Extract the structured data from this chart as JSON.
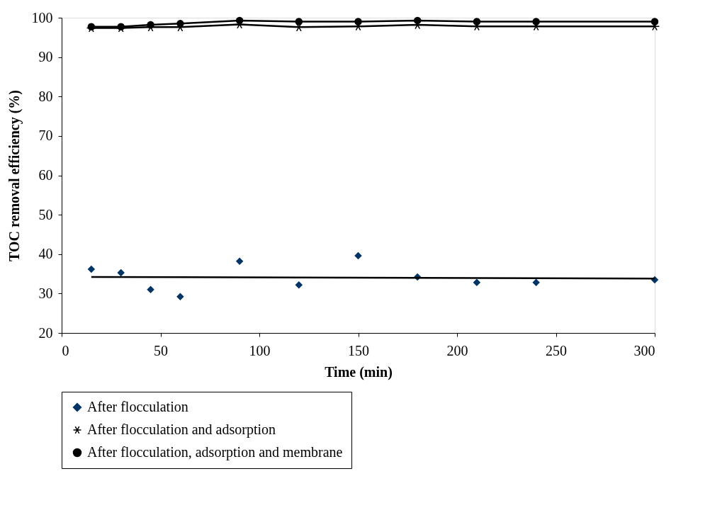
{
  "chart_data": {
    "type": "scatter",
    "xlabel": "Time (min)",
    "ylabel": "TOC removal efficiency (%)",
    "x": [
      15,
      30,
      45,
      60,
      90,
      120,
      150,
      180,
      210,
      240,
      300
    ],
    "xlim": [
      0,
      300
    ],
    "xticks": [
      0,
      50,
      100,
      150,
      200,
      250,
      300
    ],
    "ylim": [
      20,
      100
    ],
    "yticks": [
      20,
      30,
      40,
      50,
      60,
      70,
      80,
      90,
      100
    ],
    "grid": false,
    "legend": "bottom",
    "series": [
      {
        "name": "After flocculation",
        "marker": "diamond",
        "color": "#003366",
        "values": [
          36.2,
          35.3,
          31.0,
          29.2,
          38.2,
          32.2,
          39.6,
          34.2,
          32.8,
          32.8,
          33.5
        ]
      },
      {
        "name": "After flocculation and adsorption",
        "type": "line",
        "marker": "cross",
        "color": "#000000",
        "values": [
          97.4,
          97.4,
          97.6,
          97.6,
          98.3,
          97.6,
          97.8,
          98.2,
          97.8,
          97.8,
          97.8
        ]
      },
      {
        "name": "After flocculation, adsorption and membrane",
        "type": "line",
        "marker": "circle",
        "color": "#000000",
        "values": [
          97.7,
          97.7,
          98.2,
          98.5,
          99.3,
          99.0,
          99.0,
          99.3,
          99.0,
          99.0,
          99.0
        ]
      },
      {
        "type": "line",
        "marker": "none",
        "color": "#000000",
        "x": [
          15,
          300
        ],
        "values": [
          34.2,
          33.8
        ]
      }
    ]
  }
}
